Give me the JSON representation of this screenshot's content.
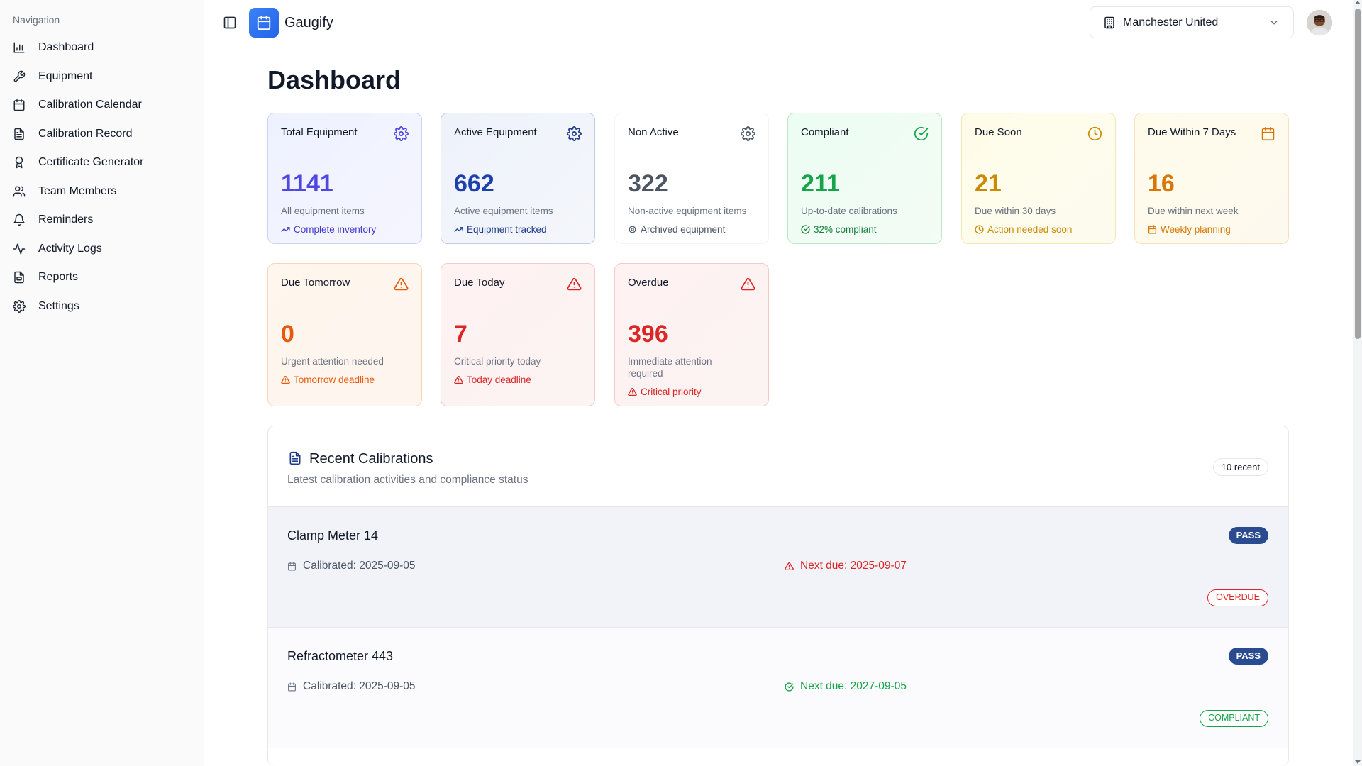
{
  "sidebar": {
    "heading": "Navigation",
    "items": [
      {
        "label": "Dashboard",
        "icon": "bar-chart-icon"
      },
      {
        "label": "Equipment",
        "icon": "wrench-icon"
      },
      {
        "label": "Calibration Calendar",
        "icon": "calendar-icon"
      },
      {
        "label": "Calibration Record",
        "icon": "file-text-icon"
      },
      {
        "label": "Certificate Generator",
        "icon": "award-icon"
      },
      {
        "label": "Team Members",
        "icon": "users-icon"
      },
      {
        "label": "Reminders",
        "icon": "bell-icon"
      },
      {
        "label": "Activity Logs",
        "icon": "activity-icon"
      },
      {
        "label": "Reports",
        "icon": "report-icon"
      },
      {
        "label": "Settings",
        "icon": "gear-icon"
      }
    ]
  },
  "header": {
    "brand": "Gaugify",
    "organization": "Manchester United"
  },
  "main": {
    "title": "Dashboard"
  },
  "stats": [
    {
      "title": "Total Equipment",
      "value": "1141",
      "sub": "All equipment items",
      "foot": "Complete inventory",
      "icon": "gear-icon",
      "foot_icon": "trending-up-icon",
      "accent": "#4f46e5"
    },
    {
      "title": "Active Equipment",
      "value": "662",
      "sub": "Active equipment items",
      "foot": "Equipment tracked",
      "icon": "gear-icon",
      "foot_icon": "trending-up-icon",
      "accent": "#1e3a8a"
    },
    {
      "title": "Non Active",
      "value": "322",
      "sub": "Non-active equipment items",
      "foot": "Archived equipment",
      "icon": "gear-icon",
      "foot_icon": "gear-icon",
      "accent": "#4b5563"
    },
    {
      "title": "Compliant",
      "value": "211",
      "sub": "Up-to-date calibrations",
      "foot": "32% compliant",
      "icon": "check-circle-icon",
      "foot_icon": "check-circle-icon",
      "accent": "#16a34a"
    },
    {
      "title": "Due Soon",
      "value": "21",
      "sub": "Due within 30 days",
      "foot": "Action needed soon",
      "icon": "clock-icon",
      "foot_icon": "clock-icon",
      "accent": "#ca8a04"
    },
    {
      "title": "Due Within 7 Days",
      "value": "16",
      "sub": "Due within next week",
      "foot": "Weekly planning",
      "icon": "calendar-icon",
      "foot_icon": "calendar-icon",
      "accent": "#d97706"
    },
    {
      "title": "Due Tomorrow",
      "value": "0",
      "sub": "Urgent attention needed",
      "foot": "Tomorrow deadline",
      "icon": "warning-icon",
      "foot_icon": "warning-icon",
      "accent": "#ea580c"
    },
    {
      "title": "Due Today",
      "value": "7",
      "sub": "Critical priority today",
      "foot": "Today deadline",
      "icon": "warning-icon",
      "foot_icon": "warning-icon",
      "accent": "#dc2626"
    },
    {
      "title": "Overdue",
      "value": "396",
      "sub": "Immediate attention required",
      "foot": "Critical priority",
      "icon": "warning-icon",
      "foot_icon": "warning-icon",
      "accent": "#dc2626"
    }
  ],
  "recent": {
    "title": "Recent Calibrations",
    "subtitle": "Latest calibration activities and compliance status",
    "count_badge": "10 recent",
    "rows": [
      {
        "name": "Clamp Meter 14",
        "result": "PASS",
        "calibrated": "Calibrated: 2025-09-05",
        "next_due": "Next due: 2025-09-07",
        "status": "OVERDUE",
        "status_color": "#dc2626"
      },
      {
        "name": "Refractometer 443",
        "result": "PASS",
        "calibrated": "Calibrated: 2025-09-05",
        "next_due": "Next due: 2027-09-05",
        "status": "COMPLIANT",
        "status_color": "#16a34a"
      }
    ]
  }
}
